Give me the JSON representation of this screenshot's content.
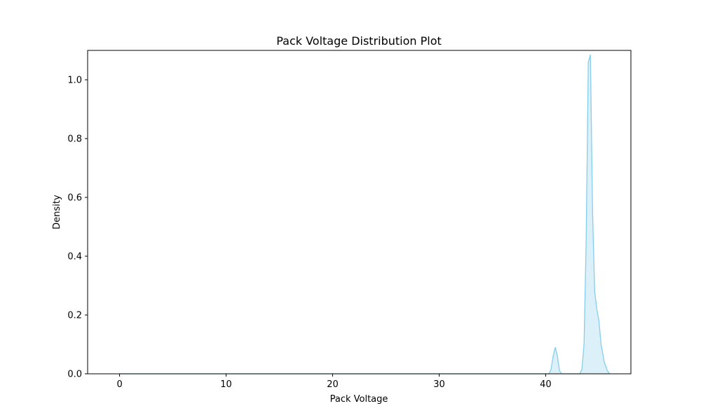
{
  "colors": {
    "line": "#87ceeb",
    "fill": "#87ceeb",
    "axis": "#000000",
    "background": "#ffffff"
  },
  "chart_data": {
    "type": "area",
    "title": "Pack Voltage Distribution Plot",
    "xlabel": "Pack Voltage",
    "ylabel": "Density",
    "xlim": [
      -3,
      48
    ],
    "ylim": [
      0,
      1.1
    ],
    "xticks": [
      0,
      10,
      20,
      30,
      40
    ],
    "yticks": [
      0.0,
      0.2,
      0.4,
      0.6,
      0.8,
      1.0
    ],
    "xtick_labels": [
      "0",
      "10",
      "20",
      "30",
      "40"
    ],
    "ytick_labels": [
      "0.0",
      "0.2",
      "0.4",
      "0.6",
      "0.8",
      "1.0"
    ],
    "grid": false,
    "legend": "none",
    "fill_alpha": 0.3,
    "series": [
      {
        "x": [
          0,
          5,
          10,
          15,
          20,
          25,
          30,
          35,
          38,
          40.3,
          40.5,
          40.7,
          40.9,
          41.1,
          41.3,
          41.5,
          41.8,
          42.5,
          43.2,
          43.4,
          43.6,
          43.8,
          44.0,
          44.2,
          44.4,
          44.6,
          44.8,
          45.0,
          45.2,
          45.5,
          45.8,
          46.0
        ],
        "y": [
          0.0,
          0.0,
          0.0,
          0.0,
          0.0,
          0.0,
          0.0,
          0.0,
          0.0,
          0.0,
          0.015,
          0.06,
          0.09,
          0.06,
          0.01,
          0.0,
          0.0,
          0.0,
          0.0,
          0.015,
          0.1,
          0.45,
          1.06,
          1.085,
          0.55,
          0.28,
          0.22,
          0.18,
          0.1,
          0.04,
          0.01,
          0.0
        ]
      }
    ]
  }
}
